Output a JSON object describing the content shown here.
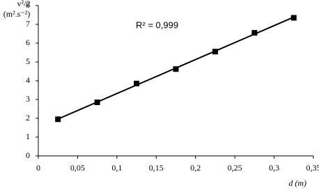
{
  "chart_data": {
    "type": "scatter",
    "ylabel": "v²/2",
    "ylabel_unit": "(m².s⁻²)",
    "xlabel": "d (m)",
    "annotation": "R² = 0,999",
    "x": [
      0.025,
      0.075,
      0.125,
      0.175,
      0.225,
      0.275,
      0.325
    ],
    "series": [
      {
        "name": "v²/2",
        "color": "#000000",
        "values": [
          1.95,
          2.85,
          3.85,
          4.62,
          5.55,
          6.55,
          7.35
        ]
      }
    ],
    "trendline": true,
    "xlim": [
      0,
      0.35
    ],
    "xticks": [
      0,
      {
        "value": 0.05,
        "label": "0,05"
      },
      {
        "value": 0.1,
        "label": "0,1"
      },
      {
        "value": 0.15,
        "label": "0,15"
      },
      {
        "value": 0.2,
        "label": "0,2"
      },
      {
        "value": 0.25,
        "label": "0,25"
      },
      {
        "value": 0.3,
        "label": "0,3"
      },
      {
        "value": 0.35,
        "label": "0,35"
      }
    ],
    "ylim": [
      0,
      8
    ],
    "yticks": [
      0,
      1,
      2,
      3,
      4,
      5,
      6,
      7,
      8
    ],
    "grid": false
  }
}
